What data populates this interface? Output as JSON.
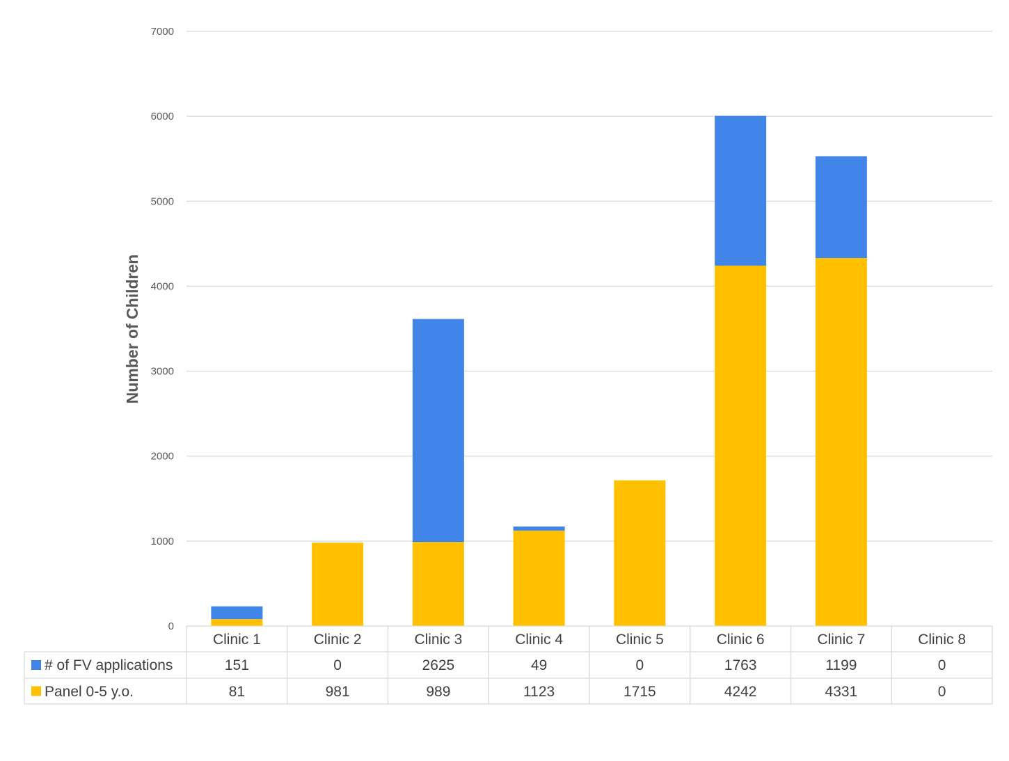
{
  "chart_data": {
    "type": "bar",
    "stacked": true,
    "ylabel": "Number of Children",
    "xlabel": "",
    "ylim": [
      0,
      7000
    ],
    "yticks": [
      0,
      1000,
      2000,
      3000,
      4000,
      5000,
      6000,
      7000
    ],
    "grid": true,
    "data_table": true,
    "categories": [
      "Clinic 1",
      "Clinic 2",
      "Clinic 3",
      "Clinic 4",
      "Clinic 5",
      "Clinic 6",
      "Clinic 7",
      "Clinic 8"
    ],
    "series": [
      {
        "name": "# of FV applications",
        "color": "#4185E8",
        "values": [
          151,
          0,
          2625,
          49,
          0,
          1763,
          1199,
          0
        ]
      },
      {
        "name": "Panel 0-5 y.o.",
        "color": "#FFC000",
        "values": [
          81,
          981,
          989,
          1123,
          1715,
          4242,
          4331,
          0
        ]
      }
    ]
  },
  "colors": {
    "grid": "#D9D9D9",
    "table_border": "#D9D9D9",
    "text": "#404040"
  }
}
